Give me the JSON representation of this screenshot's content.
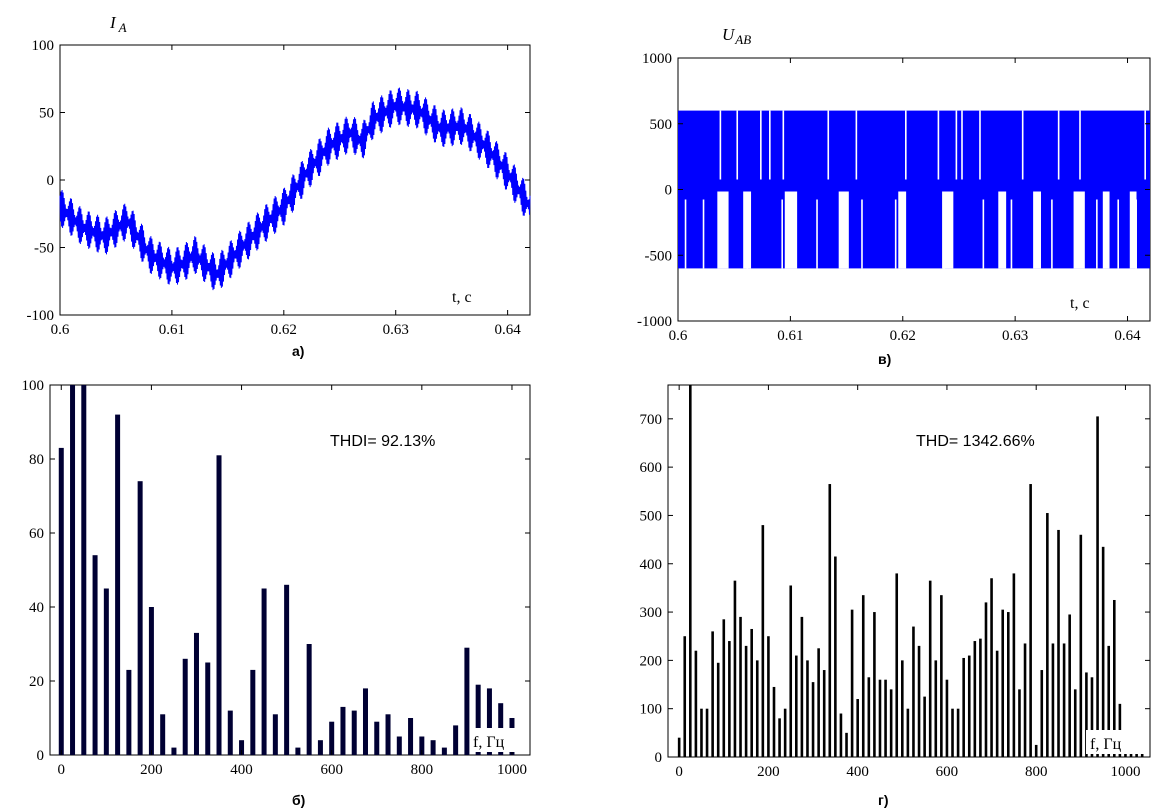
{
  "chart_data": [
    {
      "type": "line",
      "title": "I_A",
      "subplot_label": "а)",
      "xlabel": "t, c",
      "ylabel": "",
      "xlim": [
        0.6,
        0.642
      ],
      "ylim": [
        -100,
        100
      ],
      "xticks": [
        "0.6",
        "0.61",
        "0.62",
        "0.63",
        "0.64"
      ],
      "yticks": [
        "100",
        "50",
        "0",
        "-50",
        "-100"
      ],
      "color": "#0000ff",
      "series": [
        {
          "x": [
            0.6,
            0.602,
            0.604,
            0.605,
            0.606,
            0.608,
            0.61,
            0.611,
            0.612,
            0.614,
            0.616,
            0.618,
            0.62,
            0.622,
            0.624,
            0.626,
            0.627,
            0.628,
            0.63,
            0.632,
            0.634,
            0.636,
            0.638,
            0.64,
            0.642
          ],
          "values": [
            -20,
            -35,
            -42,
            -36,
            -30,
            -55,
            -65,
            -62,
            -55,
            -70,
            -52,
            -35,
            -20,
            5,
            25,
            35,
            28,
            45,
            55,
            52,
            38,
            40,
            25,
            5,
            -20
          ],
          "ripple": 14
        }
      ]
    },
    {
      "type": "line",
      "title": "U_AB",
      "subplot_label": "в)",
      "xlabel": "t, c",
      "ylabel": "",
      "xlim": [
        0.6,
        0.642
      ],
      "ylim": [
        -1000,
        1000
      ],
      "xticks": [
        "0.6",
        "0.61",
        "0.62",
        "0.63",
        "0.64"
      ],
      "yticks": [
        "1000",
        "500",
        "0",
        "-500",
        "-1000"
      ],
      "color": "#0000ff",
      "pulse_levels": [
        600,
        0,
        -600
      ],
      "positive_gaps": [
        0.6037,
        0.6052,
        0.6073,
        0.6081,
        0.6093,
        0.6133,
        0.6158,
        0.6202,
        0.6231,
        0.6247,
        0.6252,
        0.6268,
        0.6306,
        0.6338,
        0.6357,
        0.6415
      ],
      "negative_gaps": [
        0.6006,
        0.6022,
        0.6061,
        0.6092,
        0.6123,
        0.6163,
        0.6193,
        0.6236,
        0.6271,
        0.6296,
        0.6332,
        0.6372,
        0.6391,
        0.6407
      ],
      "zero_intervals": [
        [
          0.6035,
          0.6045
        ],
        [
          0.6058,
          0.6065
        ],
        [
          0.6095,
          0.6106
        ],
        [
          0.6143,
          0.6152
        ],
        [
          0.6196,
          0.6203
        ],
        [
          0.6235,
          0.6245
        ],
        [
          0.6285,
          0.6292
        ],
        [
          0.6316,
          0.6323
        ],
        [
          0.6352,
          0.6362
        ],
        [
          0.6378,
          0.6384
        ],
        [
          0.6402,
          0.6408
        ]
      ]
    },
    {
      "type": "bar",
      "subplot_label": "б)",
      "xlabel": "f, Гц",
      "annotation": "THDI= 92.13%",
      "xlim": [
        -25,
        1040
      ],
      "ylim": [
        0,
        100
      ],
      "xticks": [
        "0",
        "200",
        "400",
        "600",
        "800",
        "1000"
      ],
      "yticks": [
        "100",
        "80",
        "60",
        "40",
        "20",
        "0"
      ],
      "color": "#000033",
      "x": [
        0,
        25,
        50,
        75,
        100,
        125,
        150,
        175,
        200,
        225,
        250,
        275,
        300,
        325,
        350,
        375,
        400,
        425,
        450,
        475,
        500,
        525,
        550,
        575,
        600,
        625,
        650,
        675,
        700,
        725,
        750,
        775,
        800,
        825,
        850,
        875,
        900,
        925,
        950,
        975,
        1000
      ],
      "values": [
        83,
        100,
        100,
        54,
        45,
        92,
        23,
        74,
        40,
        11,
        2,
        26,
        33,
        25,
        81,
        12,
        4,
        23,
        45,
        11,
        46,
        2,
        30,
        4,
        9,
        13,
        12,
        18,
        9,
        11,
        5,
        10,
        5,
        4,
        2,
        8,
        29,
        19,
        18,
        14,
        10
      ]
    },
    {
      "type": "bar",
      "subplot_label": "г)",
      "xlabel": "f, Гц",
      "annotation": "THD= 1342.66%",
      "xlim": [
        -25,
        1055
      ],
      "ylim": [
        0,
        770
      ],
      "xticks": [
        "0",
        "200",
        "400",
        "600",
        "800",
        "1000"
      ],
      "yticks": [
        "700",
        "600",
        "500",
        "400",
        "300",
        "200",
        "100",
        "0"
      ],
      "color": "#000000",
      "x": [
        0,
        12.5,
        25,
        37.5,
        50,
        62.5,
        75,
        87.5,
        100,
        112.5,
        125,
        137.5,
        150,
        162.5,
        175,
        187.5,
        200,
        212.5,
        225,
        237.5,
        250,
        262.5,
        275,
        287.5,
        300,
        312.5,
        325,
        337.5,
        350,
        362.5,
        375,
        387.5,
        400,
        412.5,
        425,
        437.5,
        450,
        462.5,
        475,
        487.5,
        500,
        512.5,
        525,
        537.5,
        550,
        562.5,
        575,
        587.5,
        600,
        612.5,
        625,
        637.5,
        650,
        662.5,
        675,
        687.5,
        700,
        712.5,
        725,
        737.5,
        750,
        762.5,
        775,
        787.5,
        800,
        812.5,
        825,
        837.5,
        850,
        862.5,
        875,
        887.5,
        900,
        912.5,
        925,
        937.5,
        950,
        962.5,
        975,
        987.5,
        1000,
        1012.5,
        1025,
        1037.5
      ],
      "values": [
        40,
        250,
        770,
        220,
        100,
        100,
        260,
        195,
        285,
        240,
        365,
        290,
        230,
        265,
        200,
        480,
        250,
        145,
        80,
        100,
        355,
        210,
        290,
        200,
        155,
        225,
        180,
        565,
        415,
        90,
        50,
        305,
        120,
        335,
        165,
        300,
        160,
        160,
        140,
        380,
        200,
        100,
        270,
        230,
        125,
        365,
        200,
        335,
        160,
        100,
        100,
        205,
        210,
        240,
        245,
        320,
        370,
        220,
        305,
        300,
        380,
        140,
        235,
        565,
        25,
        180,
        505,
        235,
        470,
        235,
        295,
        140,
        460,
        175,
        165,
        705,
        435,
        230,
        325,
        110,
        30,
        10,
        10,
        10
      ]
    }
  ]
}
